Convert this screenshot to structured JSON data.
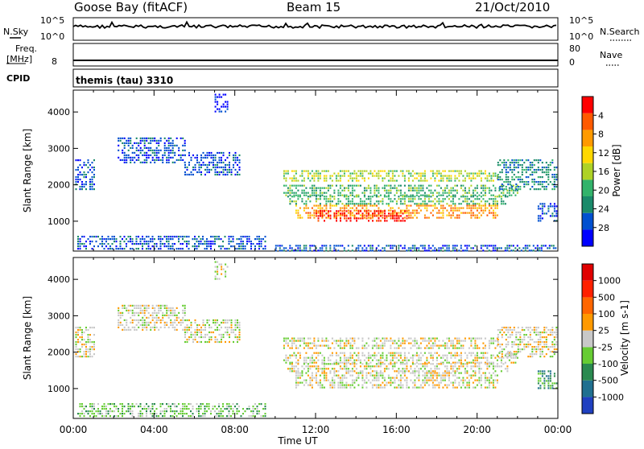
{
  "header": {
    "station": "Goose Bay (fitACF)",
    "beam": "Beam 15",
    "date": "21/Oct/2010"
  },
  "noise_panel": {
    "left_label": "N.Sky",
    "right_label": "N.Search",
    "tick_top": "10^5",
    "tick_bottom": "10^0"
  },
  "freq_panel": {
    "left_label_1": "Freq.",
    "left_label_2": "[MHz]",
    "left_tick": "8",
    "right_label": "Nave",
    "right_tick_top": "80",
    "right_tick_bottom": "0"
  },
  "cpid": {
    "label": "CPID",
    "value": "themis (tau) 3310"
  },
  "chart_data": [
    {
      "type": "heatmap",
      "title": "",
      "ylabel": "Slant Range [km]",
      "xlabel": "Time UT",
      "x_ticks": [
        "00:00",
        "04:00",
        "08:00",
        "12:00",
        "16:00",
        "20:00",
        "00:00"
      ],
      "y_ticks": [
        1000,
        2000,
        3000,
        4000
      ],
      "ylim": [
        180,
        4600
      ],
      "xlim_hours": [
        0,
        24
      ],
      "colorbar": {
        "label": "Power [dB]",
        "ticks": [
          "4",
          "8",
          "12",
          "16",
          "20",
          "24",
          "28"
        ],
        "colors": [
          "#0000ff",
          "#0050d0",
          "#1a8a6a",
          "#33b36b",
          "#aed226",
          "#ffd800",
          "#ff9a00",
          "#ff5a00",
          "#ff0000"
        ]
      },
      "regions": [
        {
          "t0": 0.1,
          "t1": 1.0,
          "r0": 1900,
          "r1": 2700,
          "level": 1
        },
        {
          "t0": 2.2,
          "t1": 5.5,
          "r0": 2600,
          "r1": 3300,
          "level": 1
        },
        {
          "t0": 5.5,
          "t1": 8.2,
          "r0": 2300,
          "r1": 2900,
          "level": 1
        },
        {
          "t0": 7.0,
          "t1": 7.6,
          "r0": 4000,
          "r1": 4500,
          "level": 0
        },
        {
          "t0": 0.2,
          "t1": 9.5,
          "r0": 250,
          "r1": 600,
          "level": 1
        },
        {
          "t0": 10.0,
          "t1": 23.9,
          "r0": 200,
          "r1": 350,
          "level": 1
        },
        {
          "t0": 10.4,
          "t1": 21.0,
          "r0": 2100,
          "r1": 2400,
          "level": 4
        },
        {
          "t0": 10.4,
          "t1": 22.0,
          "r0": 1700,
          "r1": 2000,
          "level": 3
        },
        {
          "t0": 10.6,
          "t1": 21.5,
          "r0": 1500,
          "r1": 1700,
          "level": 3
        },
        {
          "t0": 11.0,
          "t1": 21.0,
          "r0": 1100,
          "r1": 1450,
          "level": 6
        },
        {
          "t0": 12.0,
          "t1": 16.5,
          "r0": 1000,
          "r1": 1300,
          "level": 8
        },
        {
          "t0": 21.0,
          "t1": 23.9,
          "r0": 1900,
          "r1": 2700,
          "level": 2
        },
        {
          "t0": 23.0,
          "t1": 23.9,
          "r0": 1000,
          "r1": 1500,
          "level": 1
        }
      ]
    },
    {
      "type": "heatmap",
      "title": "",
      "ylabel": "Slant Range [km]",
      "xlabel": "Time UT",
      "x_ticks": [
        "00:00",
        "04:00",
        "08:00",
        "12:00",
        "16:00",
        "20:00",
        "00:00"
      ],
      "y_ticks": [
        1000,
        2000,
        3000,
        4000
      ],
      "ylim": [
        180,
        4600
      ],
      "xlim_hours": [
        0,
        24
      ],
      "colorbar": {
        "label": "Velocity [m s-1]",
        "ticks": [
          "1000",
          "500",
          "100",
          "25",
          "-25",
          "-100",
          "-500",
          "-1000"
        ],
        "colors": [
          "#2040c0",
          "#207090",
          "#2a8a50",
          "#66cc33",
          "#c8c8c8",
          "#ff9900",
          "#ff6600",
          "#ff2000",
          "#e00000"
        ]
      },
      "regions": [
        {
          "t0": 0.1,
          "t1": 1.0,
          "r0": 1900,
          "r1": 2700,
          "level": 4
        },
        {
          "t0": 2.2,
          "t1": 5.5,
          "r0": 2600,
          "r1": 3300,
          "level": 4
        },
        {
          "t0": 5.5,
          "t1": 8.2,
          "r0": 2300,
          "r1": 2900,
          "level": 4
        },
        {
          "t0": 7.0,
          "t1": 7.6,
          "r0": 4000,
          "r1": 4500,
          "level": 4
        },
        {
          "t0": 0.2,
          "t1": 9.5,
          "r0": 250,
          "r1": 600,
          "level": 3
        },
        {
          "t0": 10.4,
          "t1": 21.0,
          "r0": 2100,
          "r1": 2400,
          "level": 4
        },
        {
          "t0": 10.4,
          "t1": 22.0,
          "r0": 1700,
          "r1": 2000,
          "level": 4
        },
        {
          "t0": 10.6,
          "t1": 21.5,
          "r0": 1500,
          "r1": 1700,
          "level": 4
        },
        {
          "t0": 11.0,
          "t1": 21.0,
          "r0": 1000,
          "r1": 1450,
          "level": 4
        },
        {
          "t0": 21.0,
          "t1": 23.9,
          "r0": 1900,
          "r1": 2700,
          "level": 4
        },
        {
          "t0": 23.0,
          "t1": 23.9,
          "r0": 1000,
          "r1": 1500,
          "level": 2
        }
      ]
    }
  ]
}
